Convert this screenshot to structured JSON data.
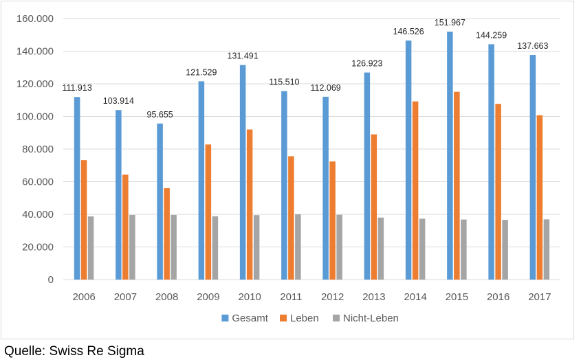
{
  "chart_data": {
    "type": "bar",
    "title": "",
    "xlabel": "",
    "ylabel": "",
    "categories": [
      "2006",
      "2007",
      "2008",
      "2009",
      "2010",
      "2011",
      "2012",
      "2013",
      "2014",
      "2015",
      "2016",
      "2017"
    ],
    "series": [
      {
        "name": "Gesamt",
        "color": "#5b9bd5",
        "values": [
          111913,
          103914,
          95655,
          121529,
          131491,
          115510,
          112069,
          126923,
          146526,
          151967,
          144259,
          137663
        ],
        "data_labels": [
          "111.913",
          "103.914",
          "95.655",
          "121.529",
          "131.491",
          "115.510",
          "112.069",
          "126.923",
          "146.526",
          "151.967",
          "144.259",
          "137.663"
        ]
      },
      {
        "name": "Leben",
        "color": "#ed7d31",
        "values": [
          73200,
          64300,
          56000,
          82800,
          92000,
          75600,
          72400,
          89000,
          109200,
          115100,
          107700,
          100700
        ]
      },
      {
        "name": "Nicht-Leben",
        "color": "#a5a5a5",
        "values": [
          38700,
          39600,
          39600,
          38800,
          39500,
          40000,
          39700,
          38000,
          37300,
          36800,
          36600,
          36900
        ]
      }
    ],
    "ylim": [
      0,
      160000
    ],
    "yticks": [
      0,
      20000,
      40000,
      60000,
      80000,
      100000,
      120000,
      140000,
      160000
    ],
    "ytick_labels": [
      "0",
      "20.000",
      "40.000",
      "60.000",
      "80.000",
      "100.000",
      "120.000",
      "140.000",
      "160.000"
    ],
    "grid": true,
    "legend_position": "bottom"
  },
  "source": "Quelle: Swiss Re Sigma"
}
